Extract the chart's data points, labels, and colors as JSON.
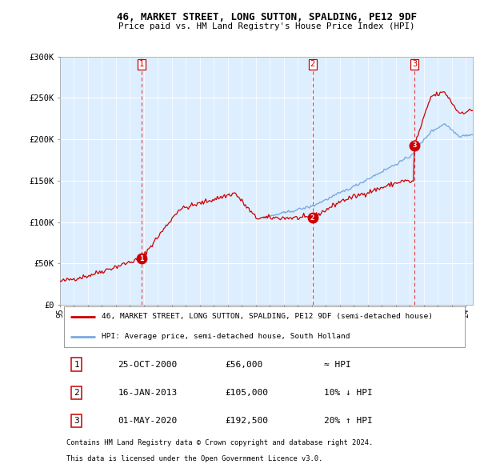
{
  "title": "46, MARKET STREET, LONG SUTTON, SPALDING, PE12 9DF",
  "subtitle": "Price paid vs. HM Land Registry's House Price Index (HPI)",
  "ylabel_ticks": [
    "£0",
    "£50K",
    "£100K",
    "£150K",
    "£200K",
    "£250K",
    "£300K"
  ],
  "ytick_values": [
    0,
    50000,
    100000,
    150000,
    200000,
    250000,
    300000
  ],
  "ylim": [
    0,
    300000
  ],
  "xlim_start": 1995.0,
  "xlim_end": 2024.5,
  "sale_points": [
    {
      "num": 1,
      "date": "25-OCT-2000",
      "price": 56000,
      "year": 2000.81,
      "label": "≈ HPI"
    },
    {
      "num": 2,
      "date": "16-JAN-2013",
      "price": 105000,
      "year": 2013.04,
      "label": "10% ↓ HPI"
    },
    {
      "num": 3,
      "date": "01-MAY-2020",
      "price": 192500,
      "year": 2020.33,
      "label": "20% ↑ HPI"
    }
  ],
  "legend_line1": "46, MARKET STREET, LONG SUTTON, SPALDING, PE12 9DF (semi-detached house)",
  "legend_line2": "HPI: Average price, semi-detached house, South Holland",
  "footer1": "Contains HM Land Registry data © Crown copyright and database right 2024.",
  "footer2": "This data is licensed under the Open Government Licence v3.0.",
  "red_color": "#cc0000",
  "blue_color": "#7aaadd",
  "bg_color": "#ddeeff",
  "grid_color": "#ffffff",
  "vline_color": "#dd4444",
  "hpi_start_year": 2009.5
}
